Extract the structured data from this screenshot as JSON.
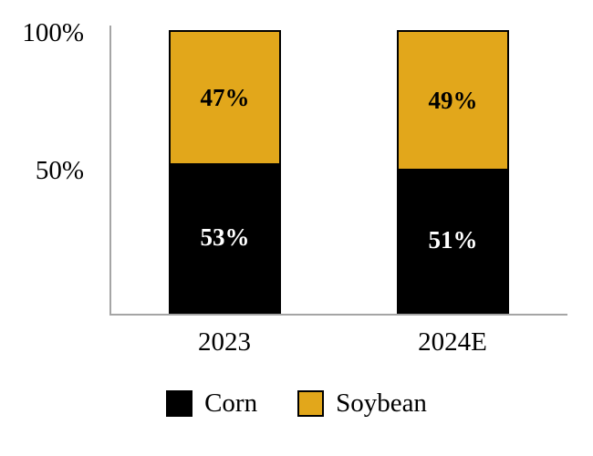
{
  "chart_data": {
    "type": "bar",
    "variant": "stacked-100-percent",
    "title": "",
    "categories": [
      "2023",
      "2024E"
    ],
    "series": [
      {
        "name": "Corn",
        "color": "#000000",
        "label_color": "#ffffff",
        "values": [
          53,
          51
        ],
        "labels": [
          "53%",
          "51%"
        ]
      },
      {
        "name": "Soybean",
        "color": "#e2a71b",
        "label_color": "#000000",
        "values": [
          47,
          49
        ],
        "labels": [
          "47%",
          "49%"
        ]
      }
    ],
    "ylim": [
      0,
      100
    ],
    "y_tick_labels": [
      "100%",
      "50%"
    ],
    "xlabel": "",
    "ylabel": "",
    "grid": false,
    "axis_color": "#a5a5a5",
    "legend": {
      "position": "bottom",
      "entries": [
        "Corn",
        "Soybean"
      ]
    }
  }
}
